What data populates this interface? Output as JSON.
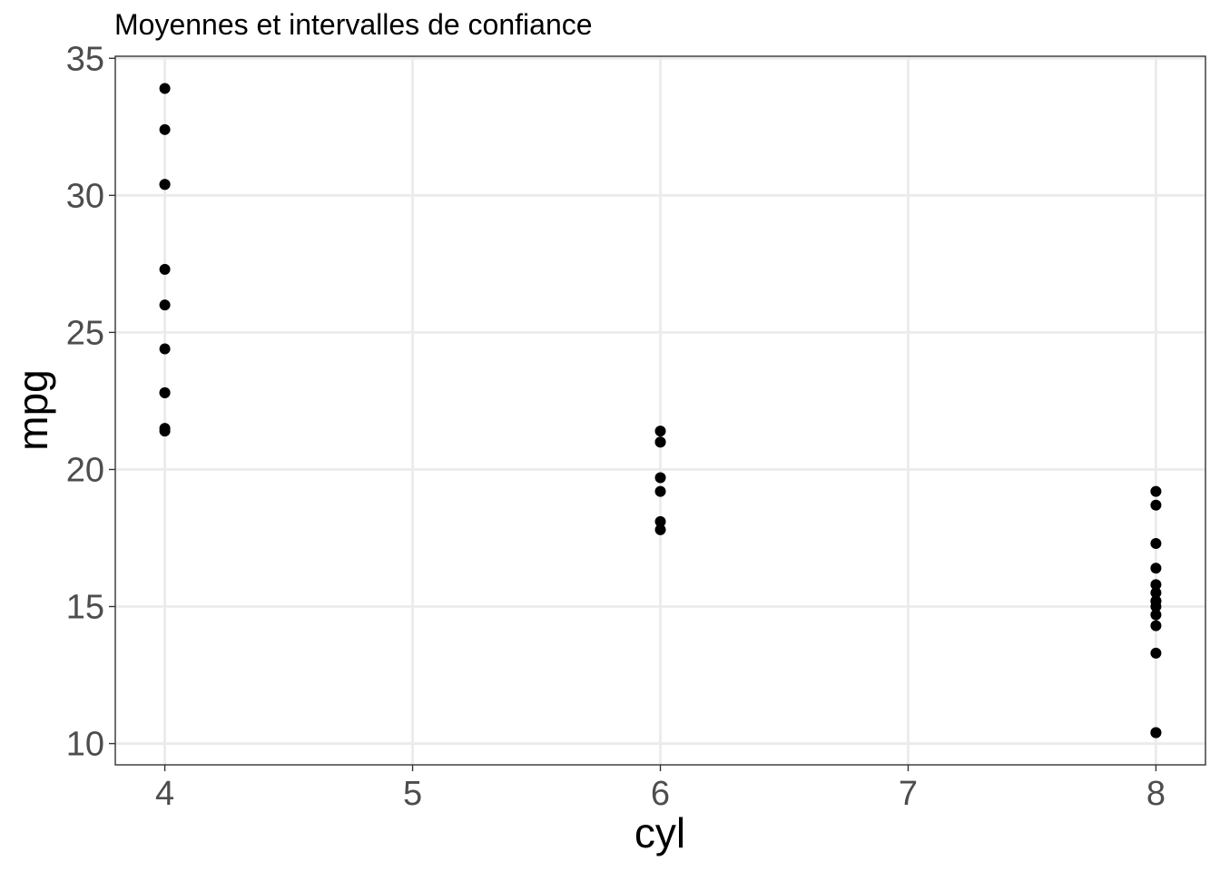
{
  "chart_data": {
    "type": "scatter",
    "title": "Moyennes et intervalles de confiance",
    "xlabel": "cyl",
    "ylabel": "mpg",
    "xlim": [
      3.8,
      8.2
    ],
    "ylim": [
      9.225,
      35.075
    ],
    "x_ticks": [
      4,
      5,
      6,
      7,
      8
    ],
    "y_ticks": [
      10,
      15,
      20,
      25,
      30,
      35
    ],
    "grid": true,
    "points": [
      {
        "x": 4,
        "y": 33.9
      },
      {
        "x": 4,
        "y": 32.4
      },
      {
        "x": 4,
        "y": 30.4
      },
      {
        "x": 4,
        "y": 30.4
      },
      {
        "x": 4,
        "y": 27.3
      },
      {
        "x": 4,
        "y": 26.0
      },
      {
        "x": 4,
        "y": 24.4
      },
      {
        "x": 4,
        "y": 22.8
      },
      {
        "x": 4,
        "y": 22.8
      },
      {
        "x": 4,
        "y": 21.5
      },
      {
        "x": 4,
        "y": 21.4
      },
      {
        "x": 6,
        "y": 21.4
      },
      {
        "x": 6,
        "y": 21.0
      },
      {
        "x": 6,
        "y": 21.0
      },
      {
        "x": 6,
        "y": 19.7
      },
      {
        "x": 6,
        "y": 19.2
      },
      {
        "x": 6,
        "y": 18.1
      },
      {
        "x": 6,
        "y": 17.8
      },
      {
        "x": 8,
        "y": 19.2
      },
      {
        "x": 8,
        "y": 18.7
      },
      {
        "x": 8,
        "y": 17.3
      },
      {
        "x": 8,
        "y": 16.4
      },
      {
        "x": 8,
        "y": 15.8
      },
      {
        "x": 8,
        "y": 15.5
      },
      {
        "x": 8,
        "y": 15.2
      },
      {
        "x": 8,
        "y": 15.2
      },
      {
        "x": 8,
        "y": 15.0
      },
      {
        "x": 8,
        "y": 14.7
      },
      {
        "x": 8,
        "y": 14.3
      },
      {
        "x": 8,
        "y": 13.3
      },
      {
        "x": 8,
        "y": 10.4
      },
      {
        "x": 8,
        "y": 10.4
      }
    ]
  }
}
